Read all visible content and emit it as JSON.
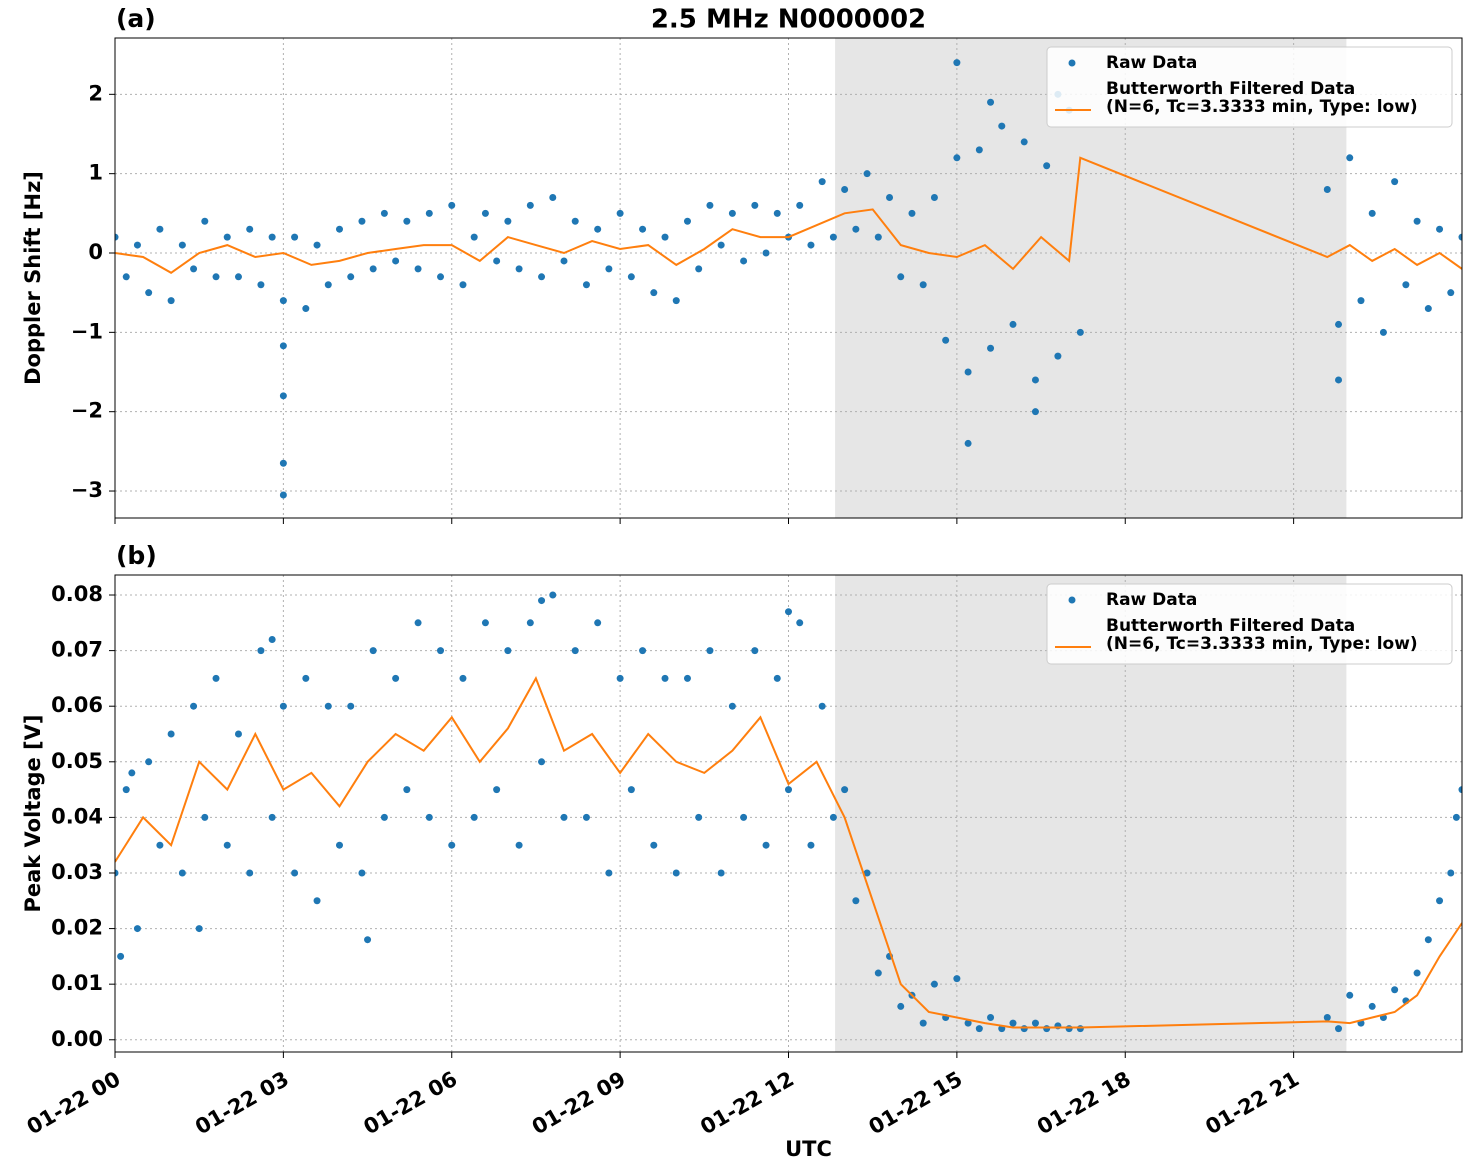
{
  "chart_data": [
    {
      "type": "line",
      "panel_label": "(a)",
      "title": "2.5 MHz N0000002",
      "y_label": "Doppler Shift [Hz]",
      "xlim": [
        0,
        24
      ],
      "xticks": [
        0,
        3,
        6,
        9,
        12,
        15,
        18,
        21
      ],
      "xticklabels": false,
      "ylim": [
        -3.34,
        2.71
      ],
      "yticks": [
        {
          "value": -3,
          "label": "−3"
        },
        {
          "value": -2,
          "label": "−2"
        },
        {
          "value": -1,
          "label": "−1"
        },
        0,
        1,
        2
      ],
      "grid": true,
      "shade": [
        12.83,
        21.94
      ],
      "shade_color": "#e6e6e6",
      "legend": "upper right",
      "series": [
        {
          "name": "Raw Data",
          "mode": "markers",
          "color": "#1f77b4",
          "x": [
            0,
            0.2,
            0.4,
            0.6,
            0.8,
            1.0,
            1.2,
            1.4,
            1.6,
            1.8,
            2.0,
            2.2,
            2.4,
            2.6,
            2.8,
            3.0,
            3.2,
            3.4,
            3.6,
            3.8,
            4.0,
            4.2,
            4.4,
            4.6,
            4.8,
            5.0,
            5.2,
            5.4,
            5.6,
            5.8,
            6.0,
            6.2,
            6.4,
            6.6,
            6.8,
            7.0,
            7.2,
            7.4,
            7.6,
            7.8,
            8.0,
            8.2,
            8.4,
            8.6,
            8.8,
            9.0,
            9.2,
            9.4,
            9.6,
            9.8,
            10.0,
            10.2,
            10.4,
            10.6,
            10.8,
            11.0,
            11.2,
            11.4,
            11.6,
            11.8,
            12.0,
            12.2,
            12.4,
            12.6,
            12.8,
            13.0,
            13.2,
            13.4,
            13.6,
            13.8,
            14.0,
            14.2,
            14.4,
            14.6,
            14.8,
            15.0,
            15.2,
            15.4,
            15.6,
            15.8,
            16.0,
            16.2,
            16.4,
            16.6,
            16.8,
            17.0,
            17.2,
            21.6,
            21.8,
            22.0,
            22.2,
            22.4,
            22.6,
            22.8,
            23.0,
            23.2,
            23.4,
            23.6,
            23.8,
            24.0,
            3,
            3,
            3,
            3,
            15,
            15.2,
            16.8,
            21.8,
            16.4,
            15.6
          ],
          "values": [
            0.2,
            -0.3,
            0.1,
            -0.5,
            0.3,
            -0.6,
            0.1,
            -0.2,
            0.4,
            -0.3,
            0.2,
            -0.3,
            0.3,
            -0.4,
            0.2,
            -0.6,
            0.2,
            -0.7,
            0.1,
            -0.4,
            0.3,
            -0.3,
            0.4,
            -0.2,
            0.5,
            -0.1,
            0.4,
            -0.2,
            0.5,
            -0.3,
            0.6,
            -0.4,
            0.2,
            0.5,
            -0.1,
            0.4,
            -0.2,
            0.6,
            -0.3,
            0.7,
            -0.1,
            0.4,
            -0.4,
            0.3,
            -0.2,
            0.5,
            -0.3,
            0.3,
            -0.5,
            0.2,
            -0.6,
            0.4,
            -0.2,
            0.6,
            0.1,
            0.5,
            -0.1,
            0.6,
            0.0,
            0.5,
            0.2,
            0.6,
            0.1,
            0.9,
            0.2,
            0.8,
            0.3,
            1.0,
            0.2,
            0.7,
            -0.3,
            0.5,
            -0.4,
            0.7,
            -1.1,
            1.2,
            -1.5,
            1.3,
            -1.2,
            1.6,
            -0.9,
            1.4,
            -1.6,
            1.1,
            -1.3,
            1.8,
            -1.0,
            0.8,
            -0.9,
            1.2,
            -0.6,
            0.5,
            -1.0,
            0.9,
            -0.4,
            0.4,
            -0.7,
            0.3,
            -0.5,
            0.2,
            -3.05,
            -2.65,
            -1.8,
            -1.17,
            2.4,
            -2.4,
            2.0,
            -1.6,
            -2.0,
            1.9
          ]
        },
        {
          "name": "Butterworth Filtered Data\n(N=6, Tc=3.3333 min, Type: low)",
          "mode": "line",
          "color": "#ff7f0e",
          "x": [
            0,
            0.5,
            1,
            1.5,
            2,
            2.5,
            3,
            3.5,
            4,
            4.5,
            5,
            5.5,
            6,
            6.5,
            7,
            7.5,
            8,
            8.5,
            9,
            9.5,
            10,
            10.5,
            11,
            11.5,
            12,
            12.5,
            13,
            13.5,
            14,
            14.5,
            15,
            15.5,
            16,
            16.5,
            17,
            17.2,
            21.6,
            22,
            22.4,
            22.8,
            23.2,
            23.6,
            24
          ],
          "values": [
            0,
            -0.05,
            -0.25,
            0,
            0.1,
            -0.05,
            0,
            -0.15,
            -0.1,
            0,
            0.05,
            0.1,
            0.1,
            -0.1,
            0.2,
            0.1,
            0,
            0.15,
            0.05,
            0.1,
            -0.15,
            0.05,
            0.3,
            0.2,
            0.2,
            0.35,
            0.5,
            0.55,
            0.1,
            0.0,
            -0.05,
            0.1,
            -0.2,
            0.2,
            -0.1,
            1.2,
            -0.05,
            0.1,
            -0.1,
            0.05,
            -0.15,
            0,
            -0.2
          ]
        }
      ]
    },
    {
      "type": "line",
      "panel_label": "(b)",
      "y_label": "Peak Voltage [V]",
      "x_label": "UTC",
      "xlim": [
        0,
        24
      ],
      "xticks": [
        {
          "value": 0,
          "label": "01-22 00"
        },
        {
          "value": 3,
          "label": "01-22 03"
        },
        {
          "value": 6,
          "label": "01-22 06"
        },
        {
          "value": 9,
          "label": "01-22 09"
        },
        {
          "value": 12,
          "label": "01-22 12"
        },
        {
          "value": 15,
          "label": "01-22 15"
        },
        {
          "value": 18,
          "label": "01-22 18"
        },
        {
          "value": 21,
          "label": "01-22 21"
        }
      ],
      "xticklabels": true,
      "ylim": [
        -0.0022,
        0.0836
      ],
      "yticks": [
        {
          "value": 0,
          "label": "0.00"
        },
        {
          "value": 0.01,
          "label": "0.01"
        },
        {
          "value": 0.02,
          "label": "0.02"
        },
        {
          "value": 0.03,
          "label": "0.03"
        },
        {
          "value": 0.04,
          "label": "0.04"
        },
        {
          "value": 0.05,
          "label": "0.05"
        },
        {
          "value": 0.06,
          "label": "0.06"
        },
        {
          "value": 0.07,
          "label": "0.07"
        },
        {
          "value": 0.08,
          "label": "0.08"
        }
      ],
      "grid": true,
      "shade": [
        12.83,
        21.94
      ],
      "shade_color": "#e6e6e6",
      "legend": "upper right",
      "series": [
        {
          "name": "Raw Data",
          "mode": "markers",
          "color": "#1f77b4",
          "x": [
            0,
            0.2,
            0.4,
            0.6,
            0.8,
            1.0,
            1.2,
            1.4,
            1.6,
            1.8,
            2.0,
            2.2,
            2.4,
            2.6,
            2.8,
            3.0,
            3.2,
            3.4,
            3.6,
            3.8,
            4.0,
            4.2,
            4.4,
            4.6,
            4.8,
            5.0,
            5.2,
            5.4,
            5.6,
            5.8,
            6.0,
            6.2,
            6.4,
            6.6,
            6.8,
            7.0,
            7.2,
            7.4,
            7.6,
            7.8,
            8.0,
            8.2,
            8.4,
            8.6,
            8.8,
            9.0,
            9.2,
            9.4,
            9.6,
            9.8,
            10.0,
            10.2,
            10.4,
            10.6,
            10.8,
            11.0,
            11.2,
            11.4,
            11.6,
            11.8,
            12.0,
            12.2,
            12.4,
            12.6,
            12.8,
            13.0,
            13.2,
            13.4,
            13.6,
            13.8,
            14.0,
            14.2,
            14.4,
            14.6,
            14.8,
            15.0,
            15.2,
            15.4,
            15.6,
            15.8,
            16.0,
            16.2,
            16.4,
            16.6,
            16.8,
            17.0,
            17.2,
            21.6,
            21.8,
            22.0,
            22.2,
            22.4,
            22.6,
            22.8,
            23.0,
            23.2,
            23.4,
            23.6,
            23.8,
            24.0,
            0.1,
            1.5,
            4.5,
            7.6,
            12.0,
            0.3,
            2.8,
            23.9
          ],
          "values": [
            0.03,
            0.045,
            0.02,
            0.05,
            0.035,
            0.055,
            0.03,
            0.06,
            0.04,
            0.065,
            0.035,
            0.055,
            0.03,
            0.07,
            0.04,
            0.06,
            0.03,
            0.065,
            0.025,
            0.06,
            0.035,
            0.06,
            0.03,
            0.07,
            0.04,
            0.065,
            0.045,
            0.075,
            0.04,
            0.07,
            0.035,
            0.065,
            0.04,
            0.075,
            0.045,
            0.07,
            0.035,
            0.075,
            0.05,
            0.08,
            0.04,
            0.07,
            0.04,
            0.075,
            0.03,
            0.065,
            0.045,
            0.07,
            0.035,
            0.065,
            0.03,
            0.065,
            0.04,
            0.07,
            0.03,
            0.06,
            0.04,
            0.07,
            0.035,
            0.065,
            0.045,
            0.075,
            0.035,
            0.06,
            0.04,
            0.045,
            0.025,
            0.03,
            0.012,
            0.015,
            0.006,
            0.008,
            0.003,
            0.01,
            0.004,
            0.011,
            0.003,
            0.002,
            0.004,
            0.002,
            0.003,
            0.002,
            0.003,
            0.002,
            0.0025,
            0.002,
            0.002,
            0.004,
            0.002,
            0.008,
            0.003,
            0.006,
            0.004,
            0.009,
            0.007,
            0.012,
            0.018,
            0.025,
            0.03,
            0.045,
            0.015,
            0.02,
            0.018,
            0.079,
            0.077,
            0.048,
            0.072,
            0.04
          ]
        },
        {
          "name": "Butterworth Filtered Data\n(N=6, Tc=3.3333 min, Type: low)",
          "mode": "line",
          "color": "#ff7f0e",
          "x": [
            0,
            0.5,
            1,
            1.5,
            2,
            2.5,
            3,
            3.5,
            4,
            4.5,
            5,
            5.5,
            6,
            6.5,
            7,
            7.5,
            8,
            8.5,
            9,
            9.5,
            10,
            10.5,
            11,
            11.5,
            12,
            12.5,
            13,
            13.5,
            14,
            14.5,
            15,
            15.5,
            16,
            16.5,
            17,
            17.2,
            21.6,
            22,
            22.4,
            22.8,
            23.2,
            23.6,
            24
          ],
          "values": [
            0.032,
            0.04,
            0.035,
            0.05,
            0.045,
            0.055,
            0.045,
            0.048,
            0.042,
            0.05,
            0.055,
            0.052,
            0.058,
            0.05,
            0.056,
            0.065,
            0.052,
            0.055,
            0.048,
            0.055,
            0.05,
            0.048,
            0.052,
            0.058,
            0.046,
            0.05,
            0.04,
            0.025,
            0.01,
            0.005,
            0.004,
            0.003,
            0.0022,
            0.0022,
            0.0022,
            0.0022,
            0.0033,
            0.003,
            0.004,
            0.005,
            0.008,
            0.015,
            0.021
          ]
        }
      ]
    }
  ]
}
